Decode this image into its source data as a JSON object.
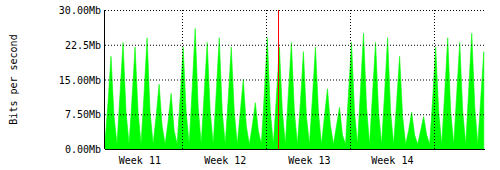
{
  "chart_data": {
    "type": "area",
    "ylabel": "Bits per second",
    "color": "#00ff00",
    "grid": true,
    "xlim": [
      0,
      31.6
    ],
    "ylim": [
      0,
      30
    ],
    "yticks": [
      {
        "value": 0,
        "label": "0.00Mb"
      },
      {
        "value": 7.5,
        "label": "7.50Mb"
      },
      {
        "value": 15,
        "label": "15.00Mb"
      },
      {
        "value": 22.5,
        "label": "22.5Mb"
      },
      {
        "value": 30,
        "label": "30.00Mb"
      }
    ],
    "xticks": [
      {
        "value": 2.9,
        "label": "Week 11"
      },
      {
        "value": 10.0,
        "label": "Week 12"
      },
      {
        "value": 17.0,
        "label": "Week 13"
      },
      {
        "value": 23.9,
        "label": "Week 14"
      }
    ],
    "xgrid": [
      6.4,
      13.4,
      20.4,
      27.4
    ],
    "marker_x": 14.4,
    "x": [
      0,
      0.25,
      0.5,
      0.75,
      1,
      1.25,
      1.5,
      1.75,
      2,
      2.25,
      2.5,
      2.75,
      3,
      3.25,
      3.5,
      3.75,
      4,
      4.25,
      4.5,
      4.75,
      5,
      5.25,
      5.5,
      5.75,
      6,
      6.25,
      6.5,
      6.75,
      7,
      7.25,
      7.5,
      7.75,
      8,
      8.25,
      8.5,
      8.75,
      9,
      9.25,
      9.5,
      9.75,
      10,
      10.25,
      10.5,
      10.75,
      11,
      11.25,
      11.5,
      11.75,
      12,
      12.25,
      12.5,
      12.75,
      13,
      13.25,
      13.5,
      13.75,
      14,
      14.25,
      14.5,
      14.75,
      15,
      15.25,
      15.5,
      15.75,
      16,
      16.25,
      16.5,
      16.75,
      17,
      17.25,
      17.5,
      17.75,
      18,
      18.25,
      18.5,
      18.75,
      19,
      19.25,
      19.5,
      19.75,
      20,
      20.25,
      20.5,
      20.75,
      21,
      21.25,
      21.5,
      21.75,
      22,
      22.25,
      22.5,
      22.75,
      23,
      23.25,
      23.5,
      23.75,
      24,
      24.25,
      24.5,
      24.75,
      25,
      25.25,
      25.5,
      25.75,
      26,
      26.25,
      26.5,
      26.75,
      27,
      27.25,
      27.5,
      27.75,
      28,
      28.25,
      28.5,
      28.75,
      29,
      29.25,
      29.5,
      29.75,
      30,
      30.25,
      30.5,
      30.75,
      31,
      31.25,
      31.5
    ],
    "values": [
      1.5,
      10,
      20,
      7,
      1,
      12,
      23,
      8,
      1,
      11,
      22,
      8,
      1,
      12,
      24,
      8,
      1,
      7,
      14,
      5,
      1,
      6,
      12,
      4,
      1,
      11,
      22,
      8,
      1,
      13,
      26,
      9,
      1,
      12,
      23,
      8,
      1,
      12,
      24,
      8,
      1,
      11,
      22,
      8,
      1,
      8,
      15,
      5,
      1,
      5,
      10,
      4,
      1,
      12,
      24,
      8,
      1,
      11,
      22,
      8,
      1,
      12,
      23,
      8,
      1,
      10,
      21,
      7,
      1,
      11,
      22,
      8,
      1,
      7,
      13,
      5,
      1,
      5,
      9,
      3,
      1,
      12,
      23,
      8,
      1,
      13,
      25,
      9,
      1,
      12,
      23,
      8,
      1,
      12,
      24,
      8,
      1,
      10,
      20,
      7,
      1,
      4,
      8,
      3,
      1,
      4,
      7,
      3,
      1,
      11,
      22,
      8,
      1,
      12,
      24,
      8,
      1,
      12,
      23,
      8,
      1,
      13,
      25,
      9,
      1,
      11,
      21
    ]
  }
}
